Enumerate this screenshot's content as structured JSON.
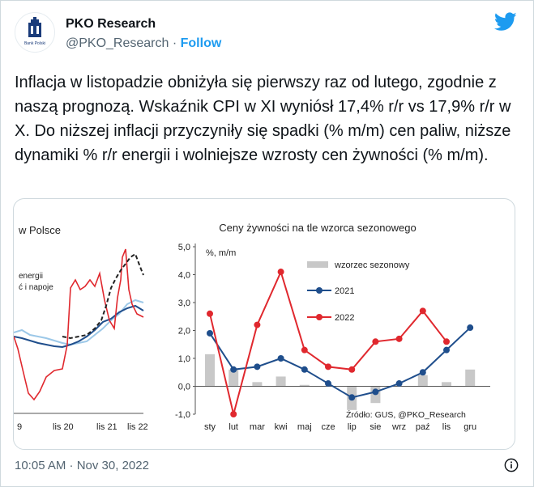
{
  "account": {
    "name": "PKO Research",
    "handle": "@PKO_Research",
    "separator": " · ",
    "follow_label": "Follow",
    "logo_caption": "Bank Polski"
  },
  "tweet": {
    "text": "Inflacja w listopadzie obniżyła się pierwszy raz od lutego, zgodnie z naszą prognozą. Wskaźnik CPI w XI wyniósł 17,4% r/r vs 17,9% r/r w X. Do niższej inflacji przyczyniły się spadki (% m/m) cen paliw, niższe dynamiki % r/r energii i wolniejsze wzrosty cen żywności (% m/m).",
    "timestamp": "10:05 AM · Nov 30, 2022"
  },
  "colors": {
    "twitter_blue": "#1d9bf0",
    "series_2021": "#1f4e8c",
    "series_2022": "#e0282e",
    "seasonal_bars": "#c8c8c8"
  },
  "left_chart": {
    "title": "w Polsce",
    "labels": [
      "energii",
      "ć i napoje"
    ],
    "x_ticks": [
      "9",
      "lis 20",
      "lis 21",
      "lis 22"
    ]
  },
  "chart_data": {
    "type": "line",
    "title": "Ceny żywności na tle wzorca sezonowego",
    "ylabel": "%, m/m",
    "categories": [
      "sty",
      "lut",
      "mar",
      "kwi",
      "maj",
      "cze",
      "lip",
      "sie",
      "wrz",
      "paź",
      "lis",
      "gru"
    ],
    "y_ticks": [
      "5,0",
      "4,0",
      "3,0",
      "2,0",
      "1,0",
      "0,0",
      "-1,0"
    ],
    "ylim": [
      -1,
      5
    ],
    "series": [
      {
        "name": "wzorzec sezonowy",
        "kind": "bar",
        "values": [
          1.15,
          0.6,
          0.15,
          0.35,
          0.05,
          0.0,
          -0.85,
          -0.6,
          0.0,
          0.4,
          0.15,
          0.6
        ]
      },
      {
        "name": "2021",
        "kind": "line",
        "values": [
          1.9,
          0.6,
          0.7,
          1.0,
          0.6,
          0.1,
          -0.4,
          -0.2,
          0.1,
          0.5,
          1.3,
          2.1
        ]
      },
      {
        "name": "2022",
        "kind": "line",
        "values": [
          2.6,
          -1.0,
          2.2,
          4.1,
          1.3,
          0.7,
          0.6,
          1.6,
          1.7,
          2.7,
          1.6,
          null
        ]
      }
    ],
    "annotation": "Źródło: GUS, @PKO_Research",
    "legend": "top-right"
  }
}
